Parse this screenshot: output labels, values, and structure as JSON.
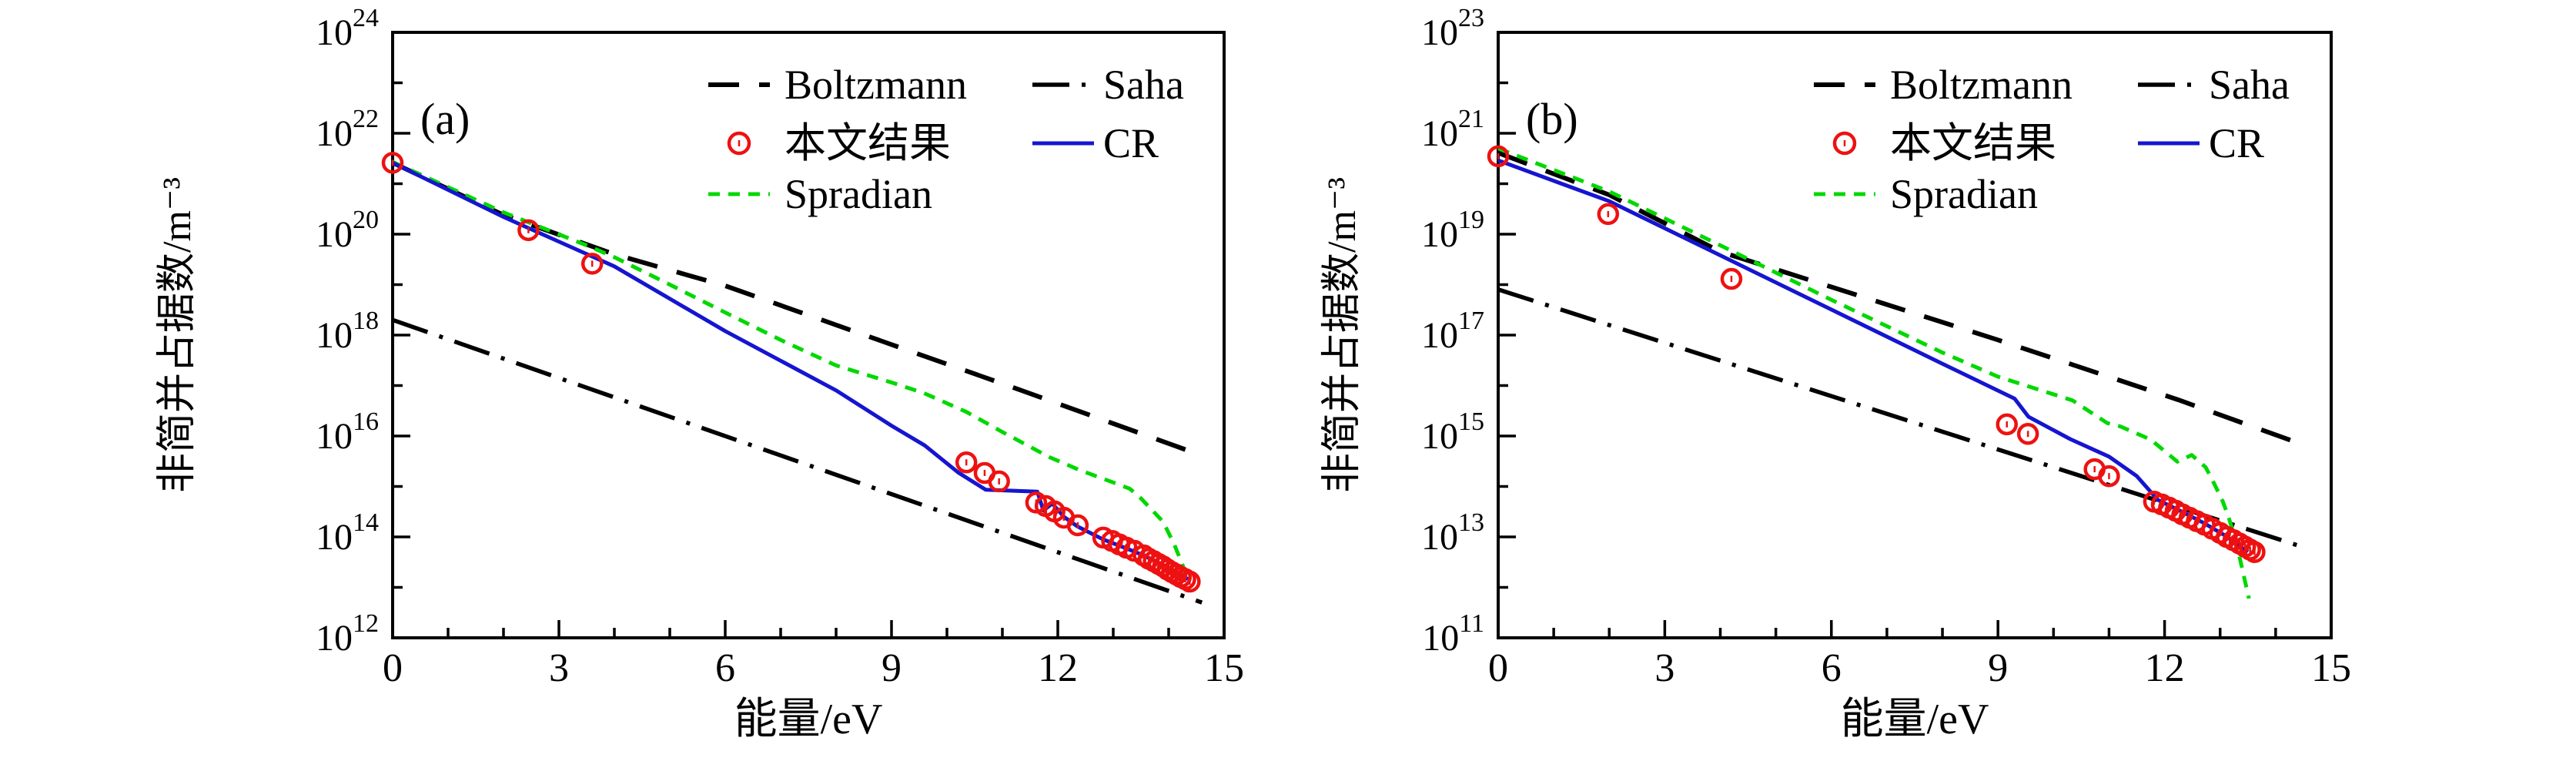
{
  "figure": {
    "background": "#ffffff",
    "colors": {
      "boltzmann": "#000000",
      "saha": "#000000",
      "spradian": "#00d800",
      "cr": "#1515d0",
      "points": "#ee1111"
    }
  },
  "chart_data": [
    {
      "type": "line",
      "panel_label": "(a)",
      "xlabel": "能量/eV",
      "ylabel": "非简并占据数/m⁻³",
      "xlim": [
        0,
        15
      ],
      "xticks": [
        0,
        3,
        6,
        9,
        12,
        15
      ],
      "x_minor_step": 1,
      "ylim_exp": [
        12,
        24
      ],
      "ytick_exps": [
        24,
        22,
        20,
        18,
        16,
        14,
        12
      ],
      "grid": false,
      "legend_position": "upper-right-inside",
      "legend": [
        {
          "label": "Boltzmann",
          "kind": "line",
          "style": "dashed",
          "color": "#000000",
          "col": 0,
          "row": 0
        },
        {
          "label": "Saha",
          "kind": "line",
          "style": "dashdot",
          "color": "#000000",
          "col": 1,
          "row": 0
        },
        {
          "label": "本文结果",
          "kind": "marker",
          "style": "circle",
          "color": "#ee1111",
          "col": 0,
          "row": 1
        },
        {
          "label": "CR",
          "kind": "line",
          "style": "solid",
          "color": "#1515d0",
          "col": 1,
          "row": 1
        },
        {
          "label": "Spradian",
          "kind": "line",
          "style": "dotted",
          "color": "#00d800",
          "col": 0,
          "row": 2
        }
      ],
      "series": [
        {
          "name": "Boltzmann",
          "style": "dashed",
          "color": "#000000",
          "points": [
            [
              0,
              2.6e+21
            ],
            [
              2,
              2.4e+20
            ],
            [
              4,
              4e+19
            ],
            [
              6,
              9.5e+18
            ],
            [
              9,
              6.5e+17
            ],
            [
              11.18,
              9.3e+16
            ],
            [
              14.45,
              4700000000000000.0
            ]
          ]
        },
        {
          "name": "Saha",
          "style": "dashdot",
          "color": "#000000",
          "points": [
            [
              0,
              2e+18
            ],
            [
              14.6,
              5000000000000.0
            ]
          ]
        },
        {
          "name": "Spradian",
          "style": "dotted",
          "color": "#00d800",
          "points": [
            [
              0,
              2.7e+21
            ],
            [
              2,
              2.7e+20
            ],
            [
              3.5,
              6e+19
            ],
            [
              4,
              3.5e+19
            ],
            [
              5,
              1e+19
            ],
            [
              6,
              2.8e+18
            ],
            [
              7,
              8e+17
            ],
            [
              8,
              2.5e+17
            ],
            [
              9,
              1.15e+17
            ],
            [
              9.58,
              7.1e+16
            ],
            [
              10.35,
              3e+16
            ],
            [
              11.0,
              1.2e+16
            ],
            [
              11.85,
              3800000000000000.0
            ],
            [
              12.4,
              2100000000000000.0
            ],
            [
              13.0,
              1200000000000000.0
            ],
            [
              13.3,
              900000000000000.0
            ],
            [
              13.5,
              580000000000000.0
            ],
            [
              13.9,
              200000000000000.0
            ],
            [
              14.1,
              71000000000000.0
            ],
            [
              14.25,
              28000000000000.0
            ],
            [
              14.35,
              13000000000000.0
            ]
          ]
        },
        {
          "name": "CR",
          "style": "solid",
          "color": "#1515d0",
          "points": [
            [
              0,
              2.6e+21
            ],
            [
              2,
              2.2e+20
            ],
            [
              4,
              2.3e+19
            ],
            [
              6,
              1.2e+18
            ],
            [
              8,
              8e+16
            ],
            [
              9,
              1.6e+16
            ],
            [
              9.6,
              6500000000000000.0
            ],
            [
              10.2,
              1900000000000000.0
            ],
            [
              10.7,
              860000000000000.0
            ],
            [
              11.63,
              790000000000000.0
            ],
            [
              11.74,
              330000000000000.0
            ],
            [
              11.9,
              460000000000000.0
            ],
            [
              12.11,
              250000000000000.0
            ],
            [
              12.36,
              160000000000000.0
            ],
            [
              12.82,
              89000000000000.0
            ],
            [
              13.24,
              59000000000000.0
            ],
            [
              13.57,
              42000000000000.0
            ],
            [
              13.89,
              28000000000000.0
            ],
            [
              14.17,
              19000000000000.0
            ],
            [
              14.35,
              14500000000000.0
            ]
          ]
        }
      ],
      "scatter": {
        "name": "本文结果",
        "marker": "open-circle",
        "color": "#ee1111",
        "points": [
          [
            0,
            2.6e+21
          ],
          [
            2.45,
            1.2e+20
          ],
          [
            3.6,
            2.6e+19
          ],
          [
            10.35,
            3000000000000000.0
          ],
          [
            10.68,
            1850000000000000.0
          ],
          [
            10.94,
            1260000000000000.0
          ],
          [
            11.61,
            480000000000000.0
          ],
          [
            11.78,
            410000000000000.0
          ],
          [
            11.94,
            320000000000000.0
          ],
          [
            12.11,
            240000000000000.0
          ],
          [
            12.36,
            170000000000000.0
          ],
          [
            12.82,
            97000000000000.0
          ],
          [
            12.98,
            83000000000000.0
          ],
          [
            13.11,
            71000000000000.0
          ],
          [
            13.24,
            61000000000000.0
          ],
          [
            13.38,
            53000000000000.0
          ],
          [
            13.55,
            43000000000000.0
          ],
          [
            13.64,
            37000000000000.0
          ],
          [
            13.73,
            33000000000000.0
          ],
          [
            13.82,
            29000000000000.0
          ],
          [
            13.9,
            26000000000000.0
          ],
          [
            13.98,
            22500000000000.0
          ],
          [
            14.06,
            20000000000000.0
          ],
          [
            14.14,
            18000000000000.0
          ],
          [
            14.22,
            16000000000000.0
          ],
          [
            14.3,
            14500000000000.0
          ],
          [
            14.38,
            13000000000000.0
          ]
        ]
      }
    },
    {
      "type": "line",
      "panel_label": "(b)",
      "xlabel": "能量/eV",
      "ylabel": "非简并占据数/m⁻³",
      "xlim": [
        0,
        15
      ],
      "xticks": [
        0,
        3,
        6,
        9,
        12,
        15
      ],
      "x_minor_step": 1,
      "ylim_exp": [
        11,
        23
      ],
      "ytick_exps": [
        23,
        21,
        19,
        17,
        15,
        13,
        11
      ],
      "grid": false,
      "legend_position": "upper-right-inside",
      "legend": [
        {
          "label": "Boltzmann",
          "kind": "line",
          "style": "dashed",
          "color": "#000000",
          "col": 0,
          "row": 0
        },
        {
          "label": "Saha",
          "kind": "line",
          "style": "dashdot",
          "color": "#000000",
          "col": 1,
          "row": 0
        },
        {
          "label": "本文结果",
          "kind": "marker",
          "style": "circle",
          "color": "#ee1111",
          "col": 0,
          "row": 1
        },
        {
          "label": "CR",
          "kind": "line",
          "style": "solid",
          "color": "#1515d0",
          "col": 1,
          "row": 1
        },
        {
          "label": "Spradian",
          "kind": "line",
          "style": "dotted",
          "color": "#00d800",
          "col": 0,
          "row": 2
        }
      ],
      "series": [
        {
          "name": "Boltzmann",
          "style": "dashed",
          "color": "#000000",
          "points": [
            [
              0,
              4.1e+20
            ],
            [
              2,
              6e+19
            ],
            [
              4,
              4.5e+18
            ],
            [
              6,
              9e+17
            ],
            [
              9,
              8e+16
            ],
            [
              12.25,
              5200000000000000.0
            ],
            [
              14.3,
              800000000000000.0
            ]
          ]
        },
        {
          "name": "Saha",
          "style": "dashdot",
          "color": "#000000",
          "points": [
            [
              0,
              8e+17
            ],
            [
              14.55,
              6000000000000.0
            ]
          ]
        },
        {
          "name": "Spradian",
          "style": "dotted",
          "color": "#00d800",
          "points": [
            [
              0,
              5e+20
            ],
            [
              2,
              7e+19
            ],
            [
              4,
              6e+18
            ],
            [
              6,
              5e+17
            ],
            [
              8,
              4.5e+16
            ],
            [
              9,
              1.5e+16
            ],
            [
              10.34,
              5100000000000000.0
            ],
            [
              10.97,
              1800000000000000.0
            ],
            [
              11.2,
              1550000000000000.0
            ],
            [
              11.75,
              850000000000000.0
            ],
            [
              12.23,
              310000000000000.0
            ],
            [
              12.49,
              420000000000000.0
            ],
            [
              12.74,
              240000000000000.0
            ],
            [
              12.9,
              110000000000000.0
            ],
            [
              13.05,
              50000000000000.0
            ],
            [
              13.15,
              25000000000000.0
            ],
            [
              13.25,
              11000000000000.0
            ],
            [
              13.35,
              4000000000000.0
            ],
            [
              13.45,
              1300000000000.0
            ],
            [
              13.52,
              600000000000.0
            ]
          ]
        },
        {
          "name": "CR",
          "style": "solid",
          "color": "#1515d0",
          "points": [
            [
              0,
              2.9e+20
            ],
            [
              2,
              4.5e+19
            ],
            [
              4,
              3.8e+18
            ],
            [
              6,
              3.2e+17
            ],
            [
              8,
              2.7e+16
            ],
            [
              9.3,
              5500000000000000.0
            ],
            [
              9.55,
              2400000000000000.0
            ],
            [
              10.3,
              870000000000000.0
            ],
            [
              11.0,
              390000000000000.0
            ],
            [
              11.5,
              160000000000000.0
            ],
            [
              11.88,
              54000000000000.0
            ],
            [
              12.3,
              32000000000000.0
            ],
            [
              12.7,
              19000000000000.0
            ],
            [
              13.1,
              10500000000000.0
            ],
            [
              13.5,
              5000000000000.0
            ]
          ]
        }
      ],
      "scatter": {
        "name": "本文结果",
        "marker": "open-circle",
        "color": "#ee1111",
        "points": [
          [
            0,
            3.5e+20
          ],
          [
            1.98,
            2.5e+19
          ],
          [
            4.2,
            1.3e+18
          ],
          [
            9.16,
            1700000000000000.0
          ],
          [
            9.54,
            1100000000000000.0
          ],
          [
            10.74,
            220000000000000.0
          ],
          [
            11.0,
            160000000000000.0
          ],
          [
            11.81,
            50000000000000.0
          ],
          [
            11.95,
            44000000000000.0
          ],
          [
            12.08,
            38000000000000.0
          ],
          [
            12.2,
            33000000000000.0
          ],
          [
            12.32,
            28000000000000.0
          ],
          [
            12.45,
            24000000000000.0
          ],
          [
            12.58,
            20500000000000.0
          ],
          [
            12.72,
            17500000000000.0
          ],
          [
            12.86,
            14500000000000.0
          ],
          [
            13.0,
            12000000000000.0
          ],
          [
            13.12,
            10000000000000.0
          ],
          [
            13.24,
            8600000000000.0
          ],
          [
            13.35,
            7400000000000.0
          ],
          [
            13.45,
            6400000000000.0
          ],
          [
            13.54,
            5600000000000.0
          ],
          [
            13.62,
            5000000000000.0
          ]
        ]
      }
    }
  ]
}
